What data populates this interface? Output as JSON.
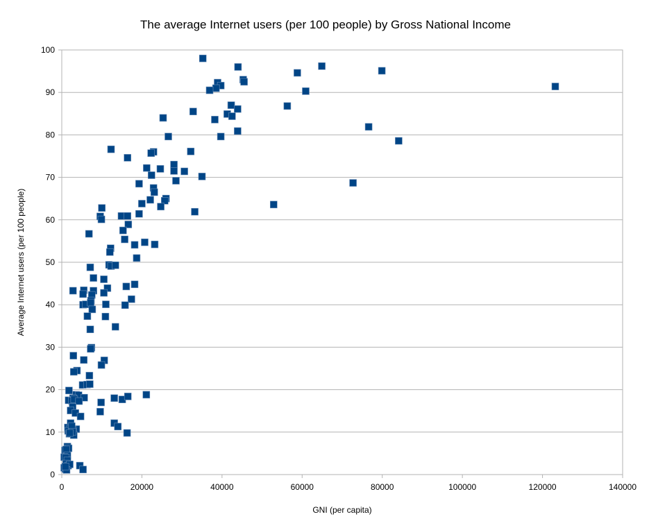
{
  "chart_data": {
    "type": "scatter",
    "title": "The average Internet users (per 100 people) by Gross National Income",
    "xlabel": "GNI (per capita)",
    "ylabel": "Average Internet users (per 100 people)",
    "xlim": [
      0,
      140000
    ],
    "ylim": [
      0,
      100
    ],
    "x_ticks": [
      0,
      20000,
      40000,
      60000,
      80000,
      100000,
      120000,
      140000
    ],
    "y_ticks": [
      0,
      10,
      20,
      30,
      40,
      50,
      60,
      70,
      80,
      90,
      100
    ],
    "grid": "horizontal",
    "marker": "square",
    "marker_color": "#004586",
    "series": [
      {
        "points": [
          [
            35200,
            98
          ],
          [
            44000,
            96
          ],
          [
            64900,
            96.2
          ],
          [
            58800,
            94.6
          ],
          [
            79900,
            95.1
          ],
          [
            45300,
            93
          ],
          [
            45500,
            92.5
          ],
          [
            38900,
            92.3
          ],
          [
            39700,
            91.6
          ],
          [
            38500,
            91
          ],
          [
            36900,
            90.5
          ],
          [
            60900,
            90.3
          ],
          [
            123200,
            91.4
          ],
          [
            42300,
            87
          ],
          [
            56300,
            86.8
          ],
          [
            32800,
            85.5
          ],
          [
            43900,
            86.1
          ],
          [
            41300,
            84.9
          ],
          [
            42500,
            84.4
          ],
          [
            25300,
            84
          ],
          [
            38200,
            83.6
          ],
          [
            76600,
            81.9
          ],
          [
            43900,
            80.9
          ],
          [
            26600,
            79.6
          ],
          [
            39700,
            79.6
          ],
          [
            84100,
            78.6
          ],
          [
            12300,
            76.6
          ],
          [
            22900,
            76
          ],
          [
            22300,
            75.7
          ],
          [
            32200,
            76.1
          ],
          [
            16400,
            74.6
          ],
          [
            28000,
            73
          ],
          [
            24600,
            72
          ],
          [
            21200,
            72.2
          ],
          [
            30600,
            71.4
          ],
          [
            28000,
            71.5
          ],
          [
            22400,
            70.5
          ],
          [
            35000,
            70.2
          ],
          [
            28500,
            69.2
          ],
          [
            72700,
            68.7
          ],
          [
            19300,
            68.5
          ],
          [
            22900,
            67.5
          ],
          [
            23100,
            66.5
          ],
          [
            26000,
            65
          ],
          [
            25700,
            64.5
          ],
          [
            22100,
            64.7
          ],
          [
            20000,
            63.8
          ],
          [
            52900,
            63.6
          ],
          [
            24700,
            63.1
          ],
          [
            10000,
            62.8
          ],
          [
            33200,
            61.9
          ],
          [
            19300,
            61.4
          ],
          [
            14900,
            60.9
          ],
          [
            16400,
            60.9
          ],
          [
            9600,
            60.8
          ],
          [
            9900,
            60.1
          ],
          [
            16600,
            58.9
          ],
          [
            15300,
            57.5
          ],
          [
            6800,
            56.7
          ],
          [
            15700,
            55.4
          ],
          [
            20700,
            54.7
          ],
          [
            18200,
            54.1
          ],
          [
            23200,
            54.2
          ],
          [
            12200,
            53.3
          ],
          [
            12000,
            52.4
          ],
          [
            18700,
            51
          ],
          [
            11800,
            49.4
          ],
          [
            12300,
            49.1
          ],
          [
            13400,
            49.3
          ],
          [
            7100,
            48.8
          ],
          [
            7900,
            46.3
          ],
          [
            10500,
            46
          ],
          [
            18200,
            44.8
          ],
          [
            16100,
            44.3
          ],
          [
            11400,
            43.9
          ],
          [
            2800,
            43.3
          ],
          [
            5500,
            43.4
          ],
          [
            7900,
            43.3
          ],
          [
            5300,
            42.5
          ],
          [
            10500,
            42.8
          ],
          [
            7500,
            42.3
          ],
          [
            7300,
            41
          ],
          [
            17400,
            41.3
          ],
          [
            5300,
            40
          ],
          [
            6000,
            40.1
          ],
          [
            7200,
            40.5
          ],
          [
            11000,
            40.1
          ],
          [
            15800,
            39.9
          ],
          [
            7600,
            38.9
          ],
          [
            6400,
            37.3
          ],
          [
            10900,
            37.2
          ],
          [
            13400,
            34.8
          ],
          [
            7100,
            34.2
          ],
          [
            7400,
            29.9
          ],
          [
            7200,
            29.6
          ],
          [
            2900,
            28
          ],
          [
            5500,
            27
          ],
          [
            10600,
            26.9
          ],
          [
            9900,
            25.8
          ],
          [
            3800,
            24.5
          ],
          [
            3000,
            24.2
          ],
          [
            6900,
            23.3
          ],
          [
            5200,
            21.1
          ],
          [
            6300,
            21.2
          ],
          [
            7000,
            21.3
          ],
          [
            1800,
            19.8
          ],
          [
            3600,
            18.8
          ],
          [
            4200,
            18.7
          ],
          [
            2800,
            18
          ],
          [
            5600,
            18.1
          ],
          [
            13100,
            18
          ],
          [
            15100,
            17.7
          ],
          [
            16500,
            18.4
          ],
          [
            21100,
            18.8
          ],
          [
            1700,
            17.5
          ],
          [
            2500,
            17.4
          ],
          [
            3100,
            17.7
          ],
          [
            4300,
            17.3
          ],
          [
            9800,
            17
          ],
          [
            2700,
            15.9
          ],
          [
            2200,
            15.1
          ],
          [
            3400,
            14.5
          ],
          [
            4700,
            13.7
          ],
          [
            9600,
            14.8
          ],
          [
            2200,
            12.1
          ],
          [
            13100,
            12.1
          ],
          [
            14000,
            11.3
          ],
          [
            1500,
            11.1
          ],
          [
            2100,
            10.8
          ],
          [
            3600,
            10.7
          ],
          [
            1600,
            10.3
          ],
          [
            2800,
            10.5
          ],
          [
            1900,
            9.6
          ],
          [
            3000,
            9.3
          ],
          [
            16300,
            9.8
          ],
          [
            1400,
            6.6
          ],
          [
            1700,
            6.2
          ],
          [
            800,
            5.7
          ],
          [
            1100,
            5.9
          ],
          [
            1400,
            4.5
          ],
          [
            600,
            4.1
          ],
          [
            1000,
            4
          ],
          [
            1400,
            3.3
          ],
          [
            1100,
            2.6
          ],
          [
            1600,
            2.1
          ],
          [
            2000,
            2.4
          ],
          [
            4500,
            2.1
          ],
          [
            600,
            1.6
          ],
          [
            900,
            1.3
          ],
          [
            1200,
            1.1
          ],
          [
            5300,
            1.2
          ],
          [
            900,
            1.9
          ],
          [
            2500,
            11.4
          ],
          [
            2700,
            10.1
          ],
          [
            2000,
            9.8
          ]
        ]
      }
    ]
  }
}
